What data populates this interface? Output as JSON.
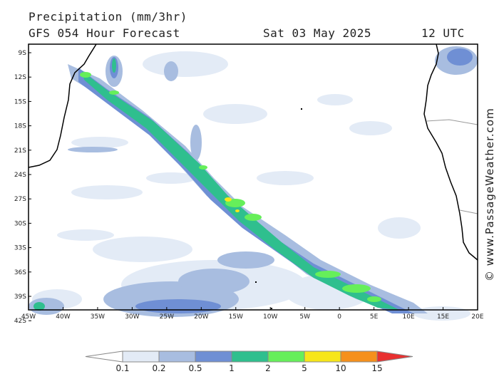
{
  "header": {
    "title": "Precipitation (mm/3hr)",
    "subtitle": "GFS 054 Hour Forecast",
    "valid_date": "Sat 03 May 2025",
    "valid_time": "12 UTC"
  },
  "credit": "© www.PassageWeather.com",
  "map": {
    "lat_labels": [
      "9S",
      "12S",
      "15S",
      "18S",
      "21S",
      "24S",
      "27S",
      "30S",
      "33S",
      "36S",
      "39S",
      "42S"
    ],
    "lon_labels": [
      "45W",
      "40W",
      "35W",
      "30W",
      "25W",
      "20W",
      "15W",
      "10W",
      "5W",
      "0",
      "5E",
      "10E",
      "15E",
      "20E"
    ],
    "land_color": "#ffffff",
    "coast_color": "#000000"
  },
  "legend": {
    "labels": [
      "0.1",
      "0.2",
      "0.5",
      "1",
      "2",
      "5",
      "10",
      "15"
    ],
    "colors": [
      "#ffffff",
      "#e3ebf6",
      "#a8bde0",
      "#6f8fd4",
      "#2fbf8e",
      "#66ef5a",
      "#f7e61a",
      "#f5901c",
      "#e83030"
    ]
  }
}
